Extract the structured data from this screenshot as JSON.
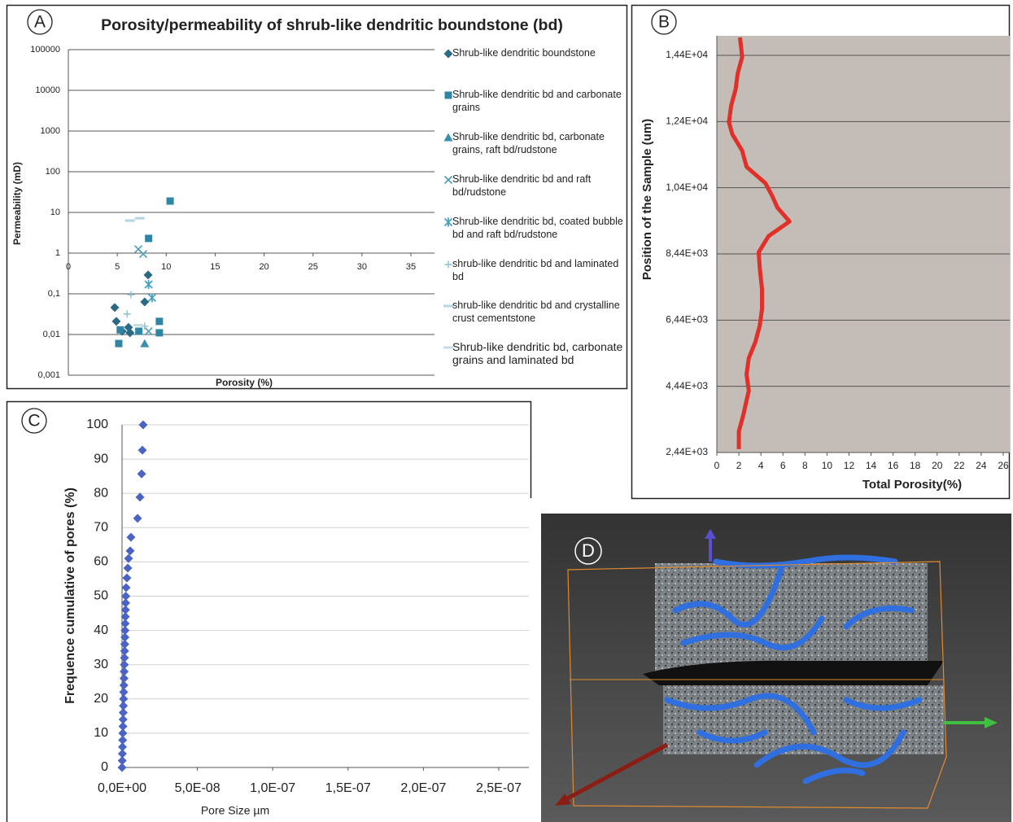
{
  "chart_data": [
    {
      "type": "scatter",
      "panel_label": "A",
      "title": "Porosity/permeability of shrub-like dendritic boundstone (bd)",
      "xlabel": "Porosity (%)",
      "ylabel": "Permeability (mD)",
      "xlim": [
        0,
        35
      ],
      "xticks": [
        0,
        5,
        10,
        15,
        20,
        25,
        30,
        35
      ],
      "ylim": [
        0.001,
        100000
      ],
      "ylog": true,
      "yticks": [
        100000,
        10000,
        1000,
        100,
        10,
        1,
        {
          "value": 0.1,
          "label": "0,1"
        },
        {
          "value": 0.01,
          "label": "0,01"
        },
        {
          "value": 0.001,
          "label": "0,001"
        }
      ],
      "xaxis_crosses": 1,
      "grid": true,
      "legend": "right",
      "series": [
        {
          "name": "Shrub-like dendritic  boundstone",
          "marker": "diamond",
          "color": "#2a6a84",
          "x": [
            4.74,
            4.9,
            5.5,
            6.15,
            6.3,
            7.8,
            8.15
          ],
          "values": [
            0.046,
            0.021,
            0.012,
            0.015,
            0.011,
            0.063,
            0.29
          ]
        },
        {
          "name": "Shrub-like dendritic bd and carbonate grains",
          "marker": "square",
          "color": "#3085a5",
          "x": [
            10.4,
            8.2,
            9.3,
            9.3,
            5.15,
            5.3,
            7.2
          ],
          "values": [
            19,
            2.3,
            0.021,
            0.011,
            0.006,
            0.013,
            0.012
          ]
        },
        {
          "name": "Shrub-like dendritic bd, carbonate grains, raft bd/rudstone",
          "marker": "triangle",
          "color": "#3a8fae",
          "x": [
            7.8
          ],
          "values": [
            0.006
          ]
        },
        {
          "name": "Shrub-like dendritic bd and raft bd/rudstone",
          "marker": "x",
          "color": "#4b9dba",
          "x": [
            7.15,
            7.65,
            8.2
          ],
          "values": [
            1.25,
            0.95,
            0.012
          ]
        },
        {
          "name": "Shrub-like dendritic bd, coated bubble bd and raft bd/rudstone",
          "marker": "asterisk",
          "color": "#4aa0bd",
          "x": [
            8.2,
            8.55
          ],
          "values": [
            0.17,
            0.08
          ]
        },
        {
          "name": "shrub-like dendritic bd and laminated bd",
          "marker": "plus",
          "color": "#8bbfd3",
          "x": [
            6,
            6.4,
            7.8
          ],
          "values": [
            0.032,
            0.095,
            0.016
          ]
        },
        {
          "name": "shrub-like dendritic bd and crystalline crust cementstone",
          "marker": "dash",
          "color": "#b4d5e3",
          "x": [
            6.3,
            7.3
          ],
          "values": [
            6.3,
            7.2
          ]
        },
        {
          "name": "Shrub-like dendritic bd, carbonate grains and laminated bd",
          "marker": "dash",
          "color": "#c6dde7",
          "x": [
            7.15
          ],
          "values": [
            0.017
          ]
        }
      ]
    },
    {
      "type": "line",
      "panel_label": "B",
      "xlabel": "Total Porosity(%)",
      "ylabel": "Position of the Sample (um)",
      "xlim": [
        0,
        26
      ],
      "xticks": [
        0,
        2,
        4,
        6,
        8,
        10,
        12,
        14,
        16,
        18,
        20,
        22,
        24,
        26
      ],
      "ylim": [
        2440,
        15030
      ],
      "yticks": [
        {
          "value": 2440,
          "label": "2,44E+03"
        },
        {
          "value": 4440,
          "label": "4,44E+03"
        },
        {
          "value": 6440,
          "label": "6,44E+03"
        },
        {
          "value": 8440,
          "label": "8,44E+03"
        },
        {
          "value": 10440,
          "label": "1,04E+04"
        },
        {
          "value": 12440,
          "label": "1,24E+04"
        },
        {
          "value": 14440,
          "label": "1,44E+04"
        }
      ],
      "grid": true,
      "color": "#e0302a",
      "plot_background": "#c4bcb6",
      "x": [
        2.1,
        2.3,
        1.9,
        1.7,
        1.3,
        1.1,
        1.4,
        2.3,
        2.7,
        4.4,
        5.0,
        5.5,
        6.6,
        4.7,
        3.8,
        3.9,
        4.1,
        4.1,
        3.9,
        3.5,
        2.9,
        2.7,
        2.9,
        2.4,
        2.0,
        2.0
      ],
      "values": [
        14980,
        14390,
        13900,
        13410,
        12920,
        12420,
        12060,
        11560,
        11070,
        10580,
        10210,
        9840,
        9420,
        8980,
        8490,
        8000,
        7380,
        6770,
        6280,
        5780,
        5290,
        4800,
        4310,
        3570,
        3080,
        2540
      ]
    },
    {
      "type": "scatter",
      "panel_label": "C",
      "xlabel": "Pore Size  µm",
      "ylabel": "Frequence cumulative of pores (%)",
      "xlim": [
        0,
        2.7e-07
      ],
      "xticks": [
        {
          "value": 0,
          "label": "0,0E+00"
        },
        {
          "value": 5e-08,
          "label": "5,0E-08"
        },
        {
          "value": 1e-07,
          "label": "1,0E-07"
        },
        {
          "value": 1.5e-07,
          "label": "1,5E-07"
        },
        {
          "value": 2e-07,
          "label": "2,0E-07"
        },
        {
          "value": 2.5e-07,
          "label": "2,5E-07"
        }
      ],
      "ylim": [
        0,
        100
      ],
      "yticks": [
        0,
        10,
        20,
        30,
        40,
        50,
        60,
        70,
        80,
        90,
        100
      ],
      "grid": true,
      "color": "#4a63c4",
      "marker": "diamond",
      "x": [
        0,
        1e-10,
        2e-10,
        3e-10,
        4e-10,
        5e-10,
        6e-10,
        7e-10,
        8e-10,
        9e-10,
        1e-09,
        1.1e-09,
        1.2e-09,
        1.3e-09,
        1.4e-09,
        1.5e-09,
        1.6e-09,
        1.7e-09,
        1.8e-09,
        1.9e-09,
        2e-09,
        2.1e-09,
        2.2e-09,
        2.3e-09,
        2.4e-09,
        2.5e-09,
        2.7e-09,
        3.2e-09,
        3.8e-09,
        4.3e-09,
        5.4e-09,
        5.9e-09,
        1.03e-08,
        1.19e-08,
        1.3e-08,
        1.35e-08,
        1.4e-08
      ],
      "values": [
        0,
        2,
        4,
        6,
        8,
        10,
        12,
        14,
        16,
        18,
        20,
        22,
        24,
        26,
        28,
        30,
        32,
        34,
        36,
        38,
        40,
        42,
        44,
        46,
        48,
        50,
        52.5,
        55.3,
        58.2,
        61,
        63.2,
        67.2,
        72.7,
        78.9,
        85.7,
        92.6,
        100
      ]
    }
  ],
  "image": {
    "label": "D"
  }
}
